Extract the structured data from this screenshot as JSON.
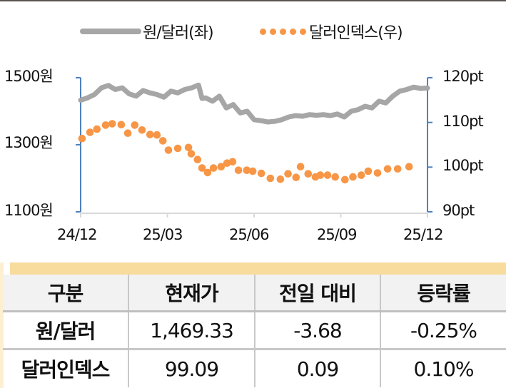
{
  "legend": {
    "series1_label": "원/달러(좌)",
    "series2_label": "달러인덱스(우)"
  },
  "axes": {
    "left_ticks": [
      "1500원",
      "1300원",
      "1100원"
    ],
    "right_ticks": [
      "120pt",
      "110pt",
      "100pt",
      "90pt"
    ],
    "x_ticks": [
      "24/12",
      "25/03",
      "25/06",
      "25/09",
      "25/12"
    ]
  },
  "colors": {
    "krw_usd": "#a6a6a6",
    "dollar_index": "#f79646",
    "axis": "#4f81bd",
    "x_axis": "#d9d9d9",
    "table_band": "#f8dc9e",
    "table_header_bg": "#f2f2f2"
  },
  "chart_data": {
    "type": "line",
    "title": "",
    "x_labels": [
      "24/12",
      "25/03",
      "25/06",
      "25/09",
      "25/12"
    ],
    "x_range": [
      "24/12",
      "25/12"
    ],
    "left_axis": {
      "label": "원/달러",
      "ylim": [
        1100,
        1500
      ],
      "ticks": [
        1100,
        1300,
        1500
      ],
      "unit": "원"
    },
    "right_axis": {
      "label": "달러인덱스",
      "ylim": [
        90,
        120
      ],
      "ticks": [
        90,
        100,
        110,
        120
      ],
      "unit": "pt"
    },
    "legend_position": "top",
    "grid": false,
    "series": [
      {
        "name": "원/달러(좌)",
        "axis": "left",
        "style": "line",
        "x": [
          0.0,
          0.02,
          0.04,
          0.06,
          0.08,
          0.1,
          0.12,
          0.14,
          0.16,
          0.18,
          0.2,
          0.22,
          0.24,
          0.26,
          0.28,
          0.3,
          0.32,
          0.34,
          0.35,
          0.36,
          0.38,
          0.4,
          0.42,
          0.44,
          0.46,
          0.48,
          0.5,
          0.52,
          0.54,
          0.56,
          0.58,
          0.6,
          0.62,
          0.64,
          0.66,
          0.68,
          0.7,
          0.72,
          0.74,
          0.76,
          0.78,
          0.8,
          0.82,
          0.84,
          0.86,
          0.88,
          0.9,
          0.92,
          0.94,
          0.96,
          0.98,
          1.0
        ],
        "values": [
          1433,
          1440,
          1450,
          1470,
          1477,
          1465,
          1470,
          1452,
          1445,
          1462,
          1455,
          1450,
          1442,
          1460,
          1455,
          1465,
          1470,
          1478,
          1438,
          1440,
          1430,
          1445,
          1410,
          1420,
          1395,
          1400,
          1375,
          1372,
          1368,
          1370,
          1375,
          1383,
          1387,
          1385,
          1390,
          1388,
          1390,
          1387,
          1392,
          1383,
          1400,
          1405,
          1415,
          1410,
          1430,
          1425,
          1445,
          1460,
          1465,
          1472,
          1468,
          1469.33
        ]
      },
      {
        "name": "달러인덱스(우)",
        "axis": "right",
        "style": "dots",
        "x": [
          0.004,
          0.027,
          0.047,
          0.072,
          0.091,
          0.117,
          0.136,
          0.156,
          0.177,
          0.2,
          0.22,
          0.237,
          0.253,
          0.28,
          0.311,
          0.319,
          0.337,
          0.35,
          0.366,
          0.383,
          0.405,
          0.422,
          0.438,
          0.455,
          0.479,
          0.496,
          0.521,
          0.547,
          0.576,
          0.598,
          0.621,
          0.634,
          0.656,
          0.677,
          0.691,
          0.712,
          0.734,
          0.762,
          0.785,
          0.809,
          0.829,
          0.856,
          0.885,
          0.914,
          0.947
        ],
        "values": [
          106.4,
          107.8,
          108.5,
          109.4,
          109.7,
          109.5,
          107.6,
          109.4,
          108.3,
          107.3,
          107.2,
          105.9,
          103.8,
          104.2,
          104.4,
          103.0,
          101.7,
          99.8,
          98.8,
          99.8,
          100.1,
          100.9,
          101.2,
          99.3,
          99.3,
          99.1,
          98.6,
          97.5,
          97.3,
          98.5,
          97.7,
          100.1,
          98.5,
          97.8,
          98.2,
          98.2,
          97.8,
          97.2,
          97.8,
          98.2,
          99.1,
          98.7,
          99.6,
          99.6,
          100.1
        ]
      }
    ]
  },
  "table": {
    "headers": [
      "구분",
      "현재가",
      "전일 대비",
      "등락률"
    ],
    "rows": [
      {
        "name": "원/달러",
        "price": "1,469.33",
        "change": "-3.68",
        "rate": "-0.25%"
      },
      {
        "name": "달러인덱스",
        "price": "99.09",
        "change": "0.09",
        "rate": "0.10%"
      }
    ]
  }
}
